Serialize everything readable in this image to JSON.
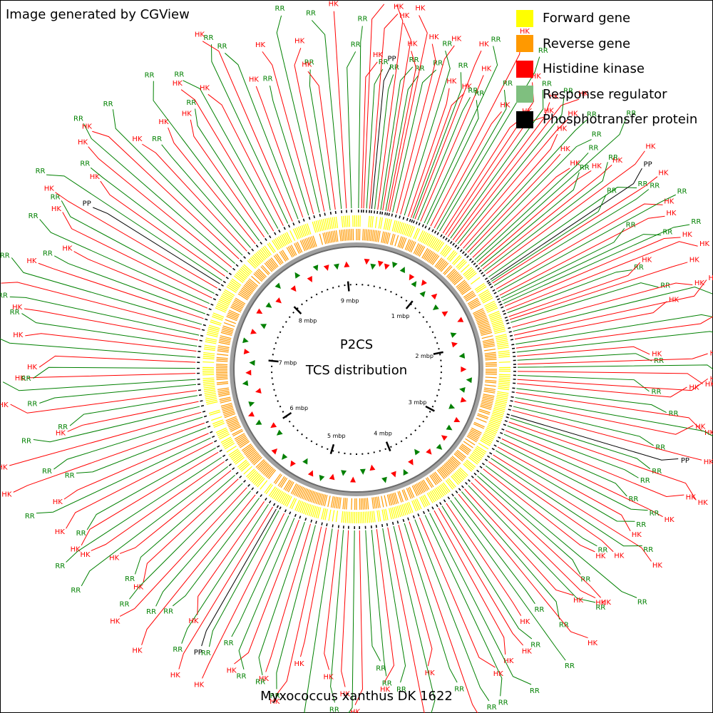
{
  "header": {
    "credit": "Image generated by CGView"
  },
  "legend": [
    {
      "label": "Forward gene",
      "color": "#ffff00",
      "icon": "square-swatch"
    },
    {
      "label": "Reverse gene",
      "color": "#ff9900",
      "icon": "square-swatch"
    },
    {
      "label": "Histidine kinase",
      "color": "#ff0000",
      "icon": "square-swatch"
    },
    {
      "label": "Response regulator",
      "color": "#7fbf7f",
      "icon": "square-swatch"
    },
    {
      "label": "Phosphotransfer protein",
      "color": "#000000",
      "icon": "square-swatch"
    }
  ],
  "center": {
    "line1": "P2CS",
    "line2": "TCS distribution"
  },
  "species": "Myxococcus xanthus DK 1622",
  "genome": {
    "length_mbp": 9.14,
    "tick_labels": [
      "1 mbp",
      "2 mbp",
      "3 mbp",
      "4 mbp",
      "5 mbp",
      "6 mbp",
      "7 mbp",
      "8 mbp",
      "9 mbp"
    ]
  },
  "marker_labels": {
    "HK": "HK",
    "RR": "RR",
    "PP": "PP"
  },
  "colors": {
    "hk": "#ff0000",
    "rr": "#008000",
    "pp": "#000000",
    "forward": "#ffff00",
    "reverse": "#ff9900",
    "backbone": "#808080"
  },
  "markers": [
    [
      "RR",
      0.2
    ],
    [
      "HK",
      0.5
    ],
    [
      "HK",
      0.7
    ],
    [
      "RR",
      1.0
    ],
    [
      "HK",
      1.3
    ],
    [
      "PP",
      1.5
    ],
    [
      "RR",
      1.8
    ],
    [
      "HK",
      2.1
    ],
    [
      "RR",
      2.4
    ],
    [
      "HK",
      2.6
    ],
    [
      "RR",
      2.9
    ],
    [
      "HK",
      3.1
    ],
    [
      "HK",
      3.3
    ],
    [
      "RR",
      3.6
    ],
    [
      "HK",
      4.0
    ],
    [
      "HK",
      4.4
    ],
    [
      "RR",
      4.8
    ],
    [
      "HK",
      5.2
    ],
    [
      "HK",
      5.5
    ],
    [
      "RR",
      5.7
    ],
    [
      "HK",
      5.9
    ],
    [
      "RR",
      6.2
    ],
    [
      "HK",
      6.5
    ],
    [
      "RR",
      6.9
    ],
    [
      "RR",
      7.2
    ],
    [
      "HK",
      7.6
    ],
    [
      "HK",
      8.0
    ],
    [
      "RR",
      8.3
    ],
    [
      "RR",
      8.6
    ],
    [
      "HK",
      9.0
    ],
    [
      "HK",
      9.3
    ],
    [
      "HK",
      9.6
    ],
    [
      "RR",
      9.9
    ],
    [
      "HK",
      10.2
    ],
    [
      "HK",
      10.5
    ],
    [
      "RR",
      10.8
    ],
    [
      "HK",
      11.1
    ],
    [
      "HK",
      11.5
    ],
    [
      "RR",
      11.8
    ],
    [
      "HK",
      12.1
    ],
    [
      "RR",
      12.4
    ],
    [
      "HK",
      12.8
    ],
    [
      "RR",
      13.1
    ],
    [
      "RR",
      13.4
    ],
    [
      "HK",
      13.7
    ],
    [
      "RR",
      14.0
    ],
    [
      "HK",
      14.3
    ],
    [
      "RR",
      14.6
    ],
    [
      "HK",
      14.9
    ],
    [
      "RR",
      15.3
    ],
    [
      "PP",
      15.6
    ],
    [
      "RR",
      15.8
    ],
    [
      "HK",
      16.0
    ],
    [
      "RR",
      16.3
    ],
    [
      "HK",
      16.7
    ],
    [
      "RR",
      17.0
    ],
    [
      "HK",
      17.4
    ],
    [
      "RR",
      17.7
    ],
    [
      "RR",
      18.0
    ],
    [
      "RR",
      18.3
    ],
    [
      "HK",
      18.6
    ],
    [
      "HK",
      19.0
    ],
    [
      "RR",
      19.3
    ],
    [
      "HK",
      19.7
    ],
    [
      "HK",
      20.0
    ],
    [
      "RR",
      20.3
    ],
    [
      "HK",
      20.8
    ],
    [
      "RR",
      21.2
    ],
    [
      "HK",
      21.6
    ],
    [
      "HK",
      22.0
    ],
    [
      "RR",
      22.5
    ],
    [
      "HK",
      22.9
    ],
    [
      "RR",
      23.3
    ],
    [
      "HK",
      23.7
    ],
    [
      "RR",
      24.1
    ],
    [
      "HK",
      24.5
    ],
    [
      "RR",
      24.8
    ],
    [
      "HK",
      25.2
    ],
    [
      "RR",
      25.6
    ],
    [
      "HK",
      26.0
    ],
    [
      "HK",
      26.4
    ],
    [
      "RR",
      26.9
    ],
    [
      "HK",
      27.3
    ],
    [
      "RR",
      27.8
    ],
    [
      "HK",
      28.2
    ],
    [
      "RR",
      28.7
    ],
    [
      "HK",
      29.1
    ],
    [
      "PP",
      29.6
    ],
    [
      "RR",
      29.9
    ],
    [
      "HK",
      30.3
    ],
    [
      "RR",
      30.7
    ],
    [
      "HK",
      31.2
    ],
    [
      "RR",
      31.6
    ],
    [
      "HK",
      32.1
    ],
    [
      "RR",
      32.5
    ],
    [
      "HK",
      33.0
    ],
    [
      "RR",
      33.4
    ],
    [
      "HK",
      33.9
    ],
    [
      "RR",
      34.3
    ],
    [
      "HK",
      34.7
    ],
    [
      "RR",
      35.2
    ],
    [
      "HK",
      35.6
    ],
    [
      "RR",
      36.1
    ],
    [
      "RR",
      36.5
    ],
    [
      "HK",
      36.9
    ],
    [
      "HK",
      37.4
    ],
    [
      "RR",
      37.8
    ],
    [
      "HK",
      38.3
    ],
    [
      "RR",
      38.7
    ],
    [
      "HK",
      39.1
    ],
    [
      "RR",
      39.6
    ],
    [
      "RR",
      40.1
    ],
    [
      "HK",
      40.6
    ],
    [
      "RR",
      41.1
    ],
    [
      "HK",
      41.5
    ],
    [
      "HK",
      42.0
    ],
    [
      "RR",
      42.5
    ],
    [
      "RR",
      43.0
    ],
    [
      "HK",
      43.6
    ],
    [
      "RR",
      44.1
    ],
    [
      "HK",
      44.7
    ],
    [
      "RR",
      45.2
    ],
    [
      "HK",
      45.8
    ],
    [
      "RR",
      46.3
    ],
    [
      "HK",
      46.9
    ],
    [
      "RR",
      47.4
    ],
    [
      "HK",
      48.0
    ],
    [
      "RR",
      48.5
    ],
    [
      "RR",
      49.1
    ],
    [
      "HK",
      49.7
    ],
    [
      "RR",
      50.2
    ],
    [
      "HK",
      50.8
    ],
    [
      "RR",
      51.3
    ],
    [
      "HK",
      51.8
    ],
    [
      "RR",
      52.4
    ],
    [
      "HK",
      53.0
    ],
    [
      "HK",
      53.5
    ],
    [
      "RR",
      54.1
    ],
    [
      "HK",
      54.6
    ],
    [
      "RR",
      55.2
    ],
    [
      "HK",
      55.8
    ],
    [
      "RR",
      56.3
    ],
    [
      "RR",
      56.9
    ],
    [
      "HK",
      57.4
    ],
    [
      "RR",
      58.0
    ],
    [
      "PP",
      58.3
    ],
    [
      "HK",
      58.7
    ],
    [
      "RR",
      59.2
    ],
    [
      "HK",
      59.7
    ],
    [
      "RR",
      60.3
    ],
    [
      "HK",
      60.8
    ],
    [
      "RR",
      61.4
    ],
    [
      "HK",
      61.9
    ],
    [
      "RR",
      62.5
    ],
    [
      "HK",
      63.1
    ],
    [
      "RR",
      63.6
    ],
    [
      "HK",
      64.2
    ],
    [
      "RR",
      64.7
    ],
    [
      "HK",
      65.3
    ],
    [
      "RR",
      65.8
    ],
    [
      "HK",
      66.4
    ],
    [
      "RR",
      66.9
    ],
    [
      "HK",
      67.5
    ],
    [
      "RR",
      68.0
    ],
    [
      "HK",
      68.5
    ],
    [
      "RR",
      69.1
    ],
    [
      "HK",
      69.6
    ],
    [
      "RR",
      70.2
    ],
    [
      "HK",
      70.7
    ],
    [
      "RR",
      71.3
    ],
    [
      "HK",
      71.8
    ],
    [
      "RR",
      72.4
    ],
    [
      "HK",
      72.9
    ],
    [
      "RR",
      73.5
    ],
    [
      "RR",
      74.0
    ],
    [
      "HK",
      74.6
    ],
    [
      "RR",
      75.1
    ],
    [
      "HK",
      75.7
    ],
    [
      "RR",
      76.2
    ],
    [
      "HK",
      76.8
    ],
    [
      "RR",
      77.3
    ],
    [
      "HK",
      77.9
    ],
    [
      "RR",
      78.4
    ],
    [
      "HK",
      79.0
    ],
    [
      "RR",
      79.5
    ],
    [
      "HK",
      80.1
    ],
    [
      "RR",
      80.6
    ],
    [
      "HK",
      81.2
    ],
    [
      "RR",
      81.7
    ],
    [
      "HK",
      82.3
    ],
    [
      "RR",
      82.8
    ],
    [
      "HK",
      83.4
    ],
    [
      "PP",
      83.9
    ],
    [
      "RR",
      84.3
    ],
    [
      "HK",
      84.8
    ],
    [
      "RR",
      85.3
    ],
    [
      "HK",
      85.9
    ],
    [
      "RR",
      86.4
    ],
    [
      "HK",
      87.0
    ],
    [
      "RR",
      87.5
    ],
    [
      "HK",
      88.1
    ],
    [
      "RR",
      88.6
    ],
    [
      "HK",
      89.2
    ],
    [
      "RR",
      89.7
    ],
    [
      "HK",
      90.3
    ],
    [
      "RR",
      90.8
    ],
    [
      "HK",
      91.4
    ],
    [
      "RR",
      91.9
    ],
    [
      "HK",
      92.5
    ],
    [
      "RR",
      93.0
    ],
    [
      "HK",
      93.5
    ],
    [
      "RR",
      94.1
    ],
    [
      "HK",
      94.6
    ],
    [
      "RR",
      95.2
    ],
    [
      "HK",
      95.7
    ],
    [
      "RR",
      96.3
    ],
    [
      "HK",
      96.8
    ],
    [
      "RR",
      97.4
    ],
    [
      "HK",
      97.9
    ],
    [
      "RR",
      98.5
    ],
    [
      "HK",
      99.0
    ],
    [
      "RR",
      99.5
    ]
  ],
  "inner_arrows": [
    [
      "HK",
      1.5
    ],
    [
      "RR",
      2.5
    ],
    [
      "HK",
      3.5
    ],
    [
      "HK",
      4.5
    ],
    [
      "RR",
      5.5
    ],
    [
      "RR",
      7.0
    ],
    [
      "HK",
      8.5
    ],
    [
      "RR",
      9.5
    ],
    [
      "HK",
      10.5
    ],
    [
      "RR",
      11.5
    ],
    [
      "HK",
      13.0
    ],
    [
      "RR",
      14.5
    ],
    [
      "HK",
      16.0
    ],
    [
      "HK",
      18.0
    ],
    [
      "RR",
      19.5
    ],
    [
      "HK",
      21.0
    ],
    [
      "RR",
      23.0
    ],
    [
      "HK",
      25.0
    ],
    [
      "RR",
      26.5
    ],
    [
      "RR",
      28.0
    ],
    [
      "HK",
      29.5
    ],
    [
      "RR",
      31.0
    ],
    [
      "HK",
      32.5
    ],
    [
      "RR",
      34.0
    ],
    [
      "HK",
      35.5
    ],
    [
      "RR",
      37.0
    ],
    [
      "HK",
      38.5
    ],
    [
      "RR",
      40.0
    ],
    [
      "HK",
      41.5
    ],
    [
      "RR",
      43.0
    ],
    [
      "HK",
      44.5
    ],
    [
      "RR",
      46.0
    ],
    [
      "HK",
      47.5
    ],
    [
      "RR",
      49.0
    ],
    [
      "HK",
      50.5
    ],
    [
      "RR",
      52.0
    ],
    [
      "HK",
      53.5
    ],
    [
      "RR",
      55.0
    ],
    [
      "HK",
      56.5
    ],
    [
      "RR",
      58.0
    ],
    [
      "HK",
      59.5
    ],
    [
      "RR",
      61.0
    ],
    [
      "HK",
      62.5
    ],
    [
      "RR",
      64.0
    ],
    [
      "HK",
      65.5
    ],
    [
      "RR",
      67.0
    ],
    [
      "HK",
      68.5
    ],
    [
      "RR",
      70.0
    ],
    [
      "HK",
      71.5
    ],
    [
      "RR",
      73.0
    ],
    [
      "HK",
      74.5
    ],
    [
      "RR",
      76.0
    ],
    [
      "HK",
      77.5
    ],
    [
      "RR",
      79.0
    ],
    [
      "HK",
      80.5
    ],
    [
      "RR",
      82.0
    ],
    [
      "HK",
      83.5
    ],
    [
      "RR",
      85.0
    ],
    [
      "HK",
      86.5
    ],
    [
      "RR",
      88.0
    ],
    [
      "HK",
      89.5
    ],
    [
      "RR",
      91.0
    ],
    [
      "HK",
      92.5
    ],
    [
      "RR",
      94.0
    ],
    [
      "HK",
      95.5
    ],
    [
      "RR",
      97.0
    ],
    [
      "HK",
      98.5
    ]
  ]
}
